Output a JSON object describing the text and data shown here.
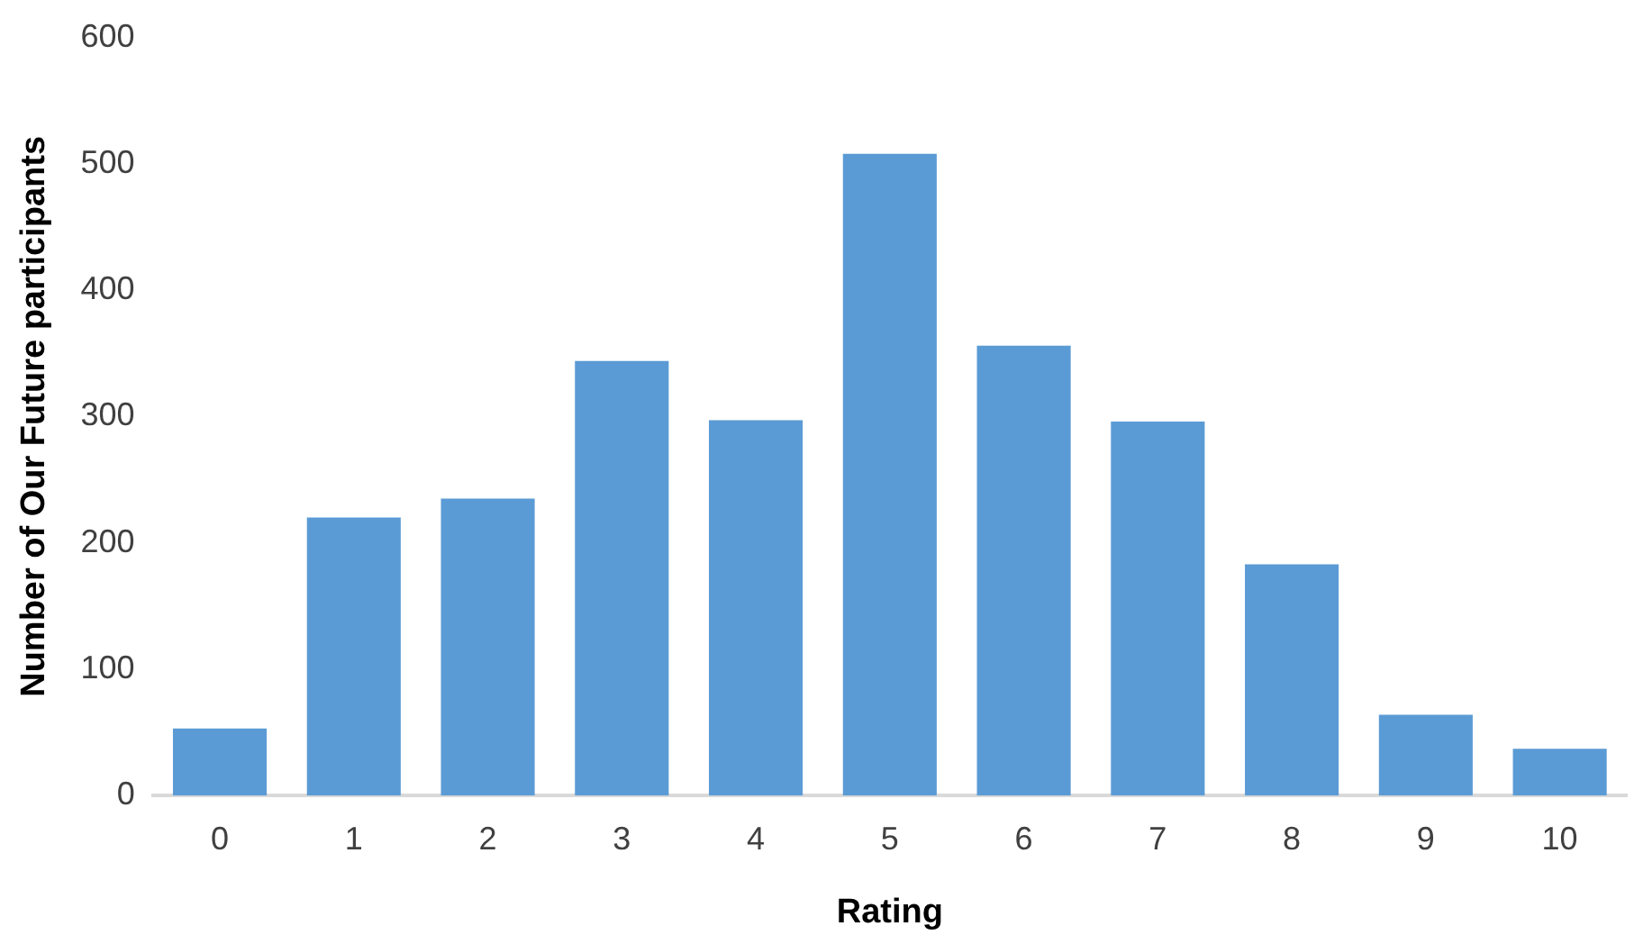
{
  "chart_data": {
    "type": "bar",
    "xlabel": "Rating",
    "ylabel": "Number of Our Future participants",
    "categories": [
      "0",
      "1",
      "2",
      "3",
      "4",
      "5",
      "6",
      "7",
      "8",
      "9",
      "10"
    ],
    "values": [
      53,
      220,
      235,
      344,
      297,
      508,
      356,
      296,
      183,
      64,
      37
    ],
    "color": "#5b9bd5",
    "ylim": [
      0,
      600
    ],
    "yticks": [
      0,
      100,
      200,
      300,
      400,
      500,
      600
    ],
    "grid": false,
    "legend": false
  }
}
